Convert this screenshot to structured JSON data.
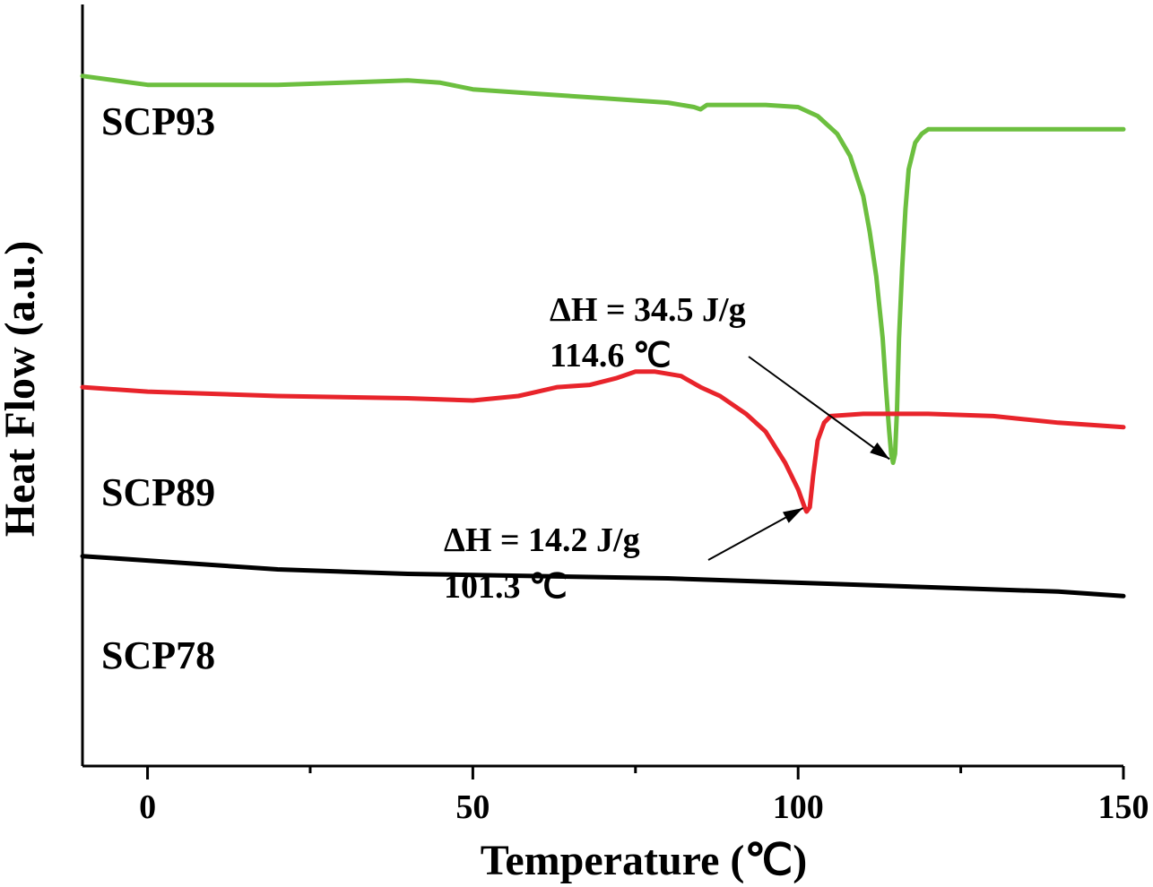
{
  "chart_data": {
    "type": "line",
    "xlabel": "Temperature (℃)",
    "ylabel": "Heat Flow (a.u.)",
    "xlim": [
      -10,
      150
    ],
    "x_ticks": [
      0,
      50,
      100,
      150
    ],
    "y_ticks_shown": false,
    "grid": false,
    "series": [
      {
        "name": "SCP93",
        "color": "#6cbf3f",
        "x": [
          -10,
          0,
          10,
          20,
          30,
          40,
          45,
          50,
          55,
          60,
          70,
          80,
          84,
          85,
          86,
          90,
          95,
          100,
          103,
          106,
          108,
          110,
          111,
          112,
          113,
          113.5,
          114,
          114.3,
          114.6,
          114.9,
          115.2,
          115.5,
          116,
          116.5,
          117,
          118,
          119,
          120,
          122,
          125,
          130,
          140,
          150
        ],
        "y": [
          0.95,
          0.93,
          0.93,
          0.93,
          0.935,
          0.94,
          0.935,
          0.92,
          0.915,
          0.91,
          0.9,
          0.89,
          0.88,
          0.875,
          0.885,
          0.885,
          0.885,
          0.88,
          0.86,
          0.82,
          0.77,
          0.68,
          0.6,
          0.5,
          0.36,
          0.25,
          0.15,
          0.1,
          0.08,
          0.1,
          0.2,
          0.36,
          0.52,
          0.65,
          0.74,
          0.8,
          0.82,
          0.83,
          0.83,
          0.83,
          0.83,
          0.83,
          0.83
        ]
      },
      {
        "name": "SCP89",
        "color": "#e8242b",
        "x": [
          -10,
          0,
          20,
          40,
          50,
          57,
          60,
          63,
          68,
          72,
          75,
          78,
          82,
          85,
          88,
          92,
          95,
          98,
          100,
          101,
          101.3,
          101.8,
          102.3,
          103,
          104,
          105,
          110,
          120,
          130,
          140,
          150
        ],
        "y": [
          0.25,
          0.24,
          0.23,
          0.225,
          0.22,
          0.23,
          0.24,
          0.25,
          0.255,
          0.27,
          0.285,
          0.285,
          0.275,
          0.25,
          0.23,
          0.19,
          0.15,
          0.08,
          0.02,
          -0.02,
          -0.03,
          -0.02,
          0.05,
          0.13,
          0.17,
          0.185,
          0.19,
          0.19,
          0.185,
          0.17,
          0.16
        ]
      },
      {
        "name": "SCP78",
        "color": "#000000",
        "x": [
          -10,
          0,
          20,
          40,
          60,
          80,
          100,
          120,
          140,
          150
        ],
        "y": [
          -0.13,
          -0.14,
          -0.16,
          -0.17,
          -0.175,
          -0.18,
          -0.19,
          -0.2,
          -0.21,
          -0.22
        ]
      }
    ],
    "annotations": [
      {
        "line1": "ΔH = 34.5 J/g",
        "line2": "114.6 ℃",
        "series": "SCP93"
      },
      {
        "line1": "ΔH = 14.2 J/g",
        "line2": "101.3 ℃",
        "series": "SCP89"
      }
    ]
  }
}
